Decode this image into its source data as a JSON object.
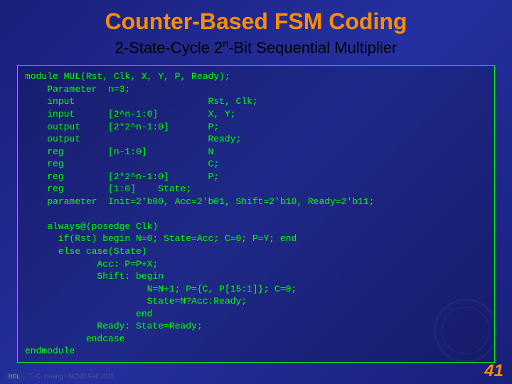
{
  "title": "Counter-Based FSM Coding",
  "subtitle_pre": "2-State-Cycle 2",
  "subtitle_sup": "n",
  "subtitle_post": "-Bit Sequential Multiplier",
  "code": "module MUL(Rst, Clk, X, Y, P, Ready);\n    Parameter  n=3;\n    input                        Rst, Clk;\n    input      [2^n-1:0]         X, Y;\n    output     [2*2^n-1:0]       P;\n    output                       Ready;\n    reg        [n-1:0]           N\n    reg                          C;\n    reg        [2*2^n-1:0]       P;\n    reg        [1:0]    State;\n    parameter  Init=2'b00, Acc=2'b01, Shift=2'b10, Ready=2'b11;\n\n    always@(posedge Clk)\n      if(Rst) begin N=0; State=Acc; C=0; P=Y; end\n      else case(State)\n             Acc: P=P+X;\n             Shift: begin\n                      N=N+1; P={C, P[15:1]}; C=0;\n                      State=N?Acc:Ready;\n                    end\n             Ready: State=Ready;\n           endcase\nendmodule",
  "footer_hdl": "HDL",
  "footer_text": "T.-C. Huang / NCUE Fall 2015",
  "page_number": "41"
}
